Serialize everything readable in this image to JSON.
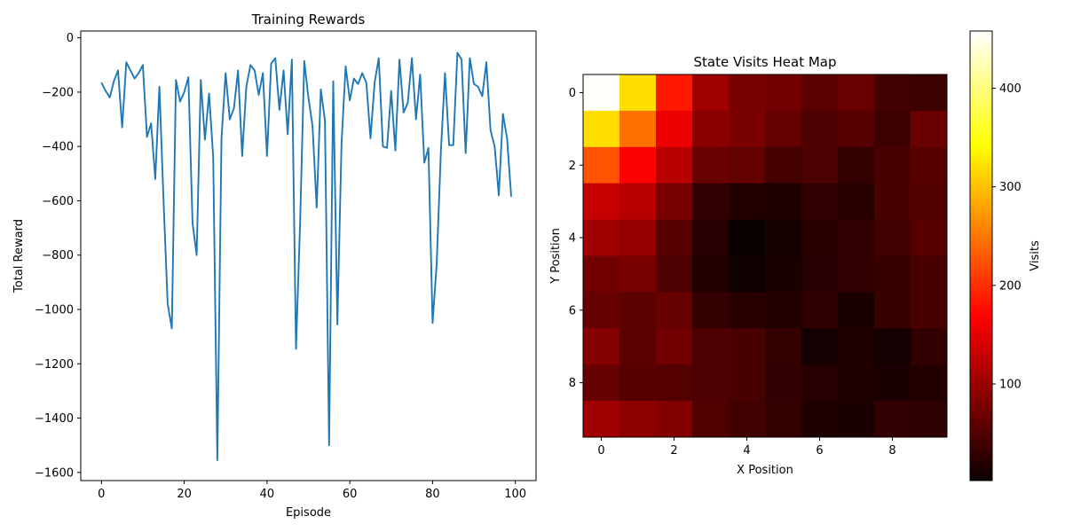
{
  "chart_data": [
    {
      "type": "line",
      "title": "Training Rewards",
      "xlabel": "Episode",
      "ylabel": "Total Reward",
      "xlim": [
        -5,
        105
      ],
      "ylim": [
        -1630,
        25
      ],
      "xticks": [
        0,
        20,
        40,
        60,
        80,
        100
      ],
      "yticks": [
        0,
        -200,
        -400,
        -600,
        -800,
        -1000,
        -1200,
        -1400,
        -1600
      ],
      "line_color": "#1f77b4",
      "x": [
        0,
        1,
        2,
        3,
        4,
        5,
        6,
        7,
        8,
        9,
        10,
        11,
        12,
        13,
        14,
        15,
        16,
        17,
        18,
        19,
        20,
        21,
        22,
        23,
        24,
        25,
        26,
        27,
        28,
        29,
        30,
        31,
        32,
        33,
        34,
        35,
        36,
        37,
        38,
        39,
        40,
        41,
        42,
        43,
        44,
        45,
        46,
        47,
        48,
        49,
        50,
        51,
        52,
        53,
        54,
        55,
        56,
        57,
        58,
        59,
        60,
        61,
        62,
        63,
        64,
        65,
        66,
        67,
        68,
        69,
        70,
        71,
        72,
        73,
        74,
        75,
        76,
        77,
        78,
        79,
        80,
        81,
        82,
        83,
        84,
        85,
        86,
        87,
        88,
        89,
        90,
        91,
        92,
        93,
        94,
        95,
        96,
        97,
        98,
        99
      ],
      "y": [
        -165,
        -195,
        -220,
        -160,
        -120,
        -330,
        -90,
        -120,
        -150,
        -130,
        -100,
        -365,
        -315,
        -520,
        -180,
        -600,
        -980,
        -1070,
        -155,
        -235,
        -200,
        -145,
        -680,
        -800,
        -155,
        -375,
        -205,
        -440,
        -1555,
        -370,
        -130,
        -300,
        -260,
        -120,
        -435,
        -180,
        -100,
        -120,
        -210,
        -130,
        -435,
        -95,
        -75,
        -265,
        -120,
        -355,
        -80,
        -1145,
        -680,
        -85,
        -220,
        -325,
        -625,
        -190,
        -305,
        -1500,
        -160,
        -1055,
        -390,
        -105,
        -230,
        -150,
        -170,
        -130,
        -165,
        -370,
        -165,
        -75,
        -400,
        -405,
        -195,
        -415,
        -80,
        -275,
        -240,
        -75,
        -300,
        -135,
        -460,
        -405,
        -1050,
        -830,
        -420,
        -130,
        -395,
        -395,
        -55,
        -80,
        -425,
        -75,
        -170,
        -180,
        -215,
        -90,
        -340,
        -400,
        -580,
        -280,
        -370,
        -585
      ]
    },
    {
      "type": "heatmap",
      "title": "State Visits Heat Map",
      "xlabel": "X Position",
      "ylabel": "Y Position",
      "xticks": [
        0,
        2,
        4,
        6,
        8
      ],
      "yticks": [
        0,
        2,
        4,
        6,
        8
      ],
      "colormap": "hot",
      "colorbar_label": "Visits",
      "vmin": 2,
      "vmax": 458,
      "colorbar_ticks": [
        100,
        200,
        300,
        400
      ],
      "values": [
        [
          456,
          320,
          185,
          100,
          75,
          70,
          55,
          65,
          38,
          35
        ],
        [
          320,
          245,
          150,
          85,
          75,
          60,
          45,
          52,
          35,
          65
        ],
        [
          225,
          160,
          115,
          65,
          60,
          40,
          45,
          30,
          42,
          52
        ],
        [
          125,
          115,
          75,
          28,
          18,
          15,
          28,
          22,
          42,
          48
        ],
        [
          100,
          92,
          52,
          20,
          2,
          10,
          22,
          28,
          38,
          52
        ],
        [
          70,
          75,
          45,
          18,
          5,
          12,
          20,
          28,
          32,
          42
        ],
        [
          62,
          55,
          62,
          30,
          22,
          18,
          25,
          12,
          32,
          42
        ],
        [
          82,
          55,
          70,
          45,
          42,
          30,
          8,
          15,
          8,
          28
        ],
        [
          62,
          52,
          50,
          45,
          42,
          28,
          20,
          15,
          12,
          18
        ],
        [
          100,
          88,
          80,
          48,
          38,
          30,
          15,
          12,
          28,
          25
        ]
      ]
    }
  ]
}
